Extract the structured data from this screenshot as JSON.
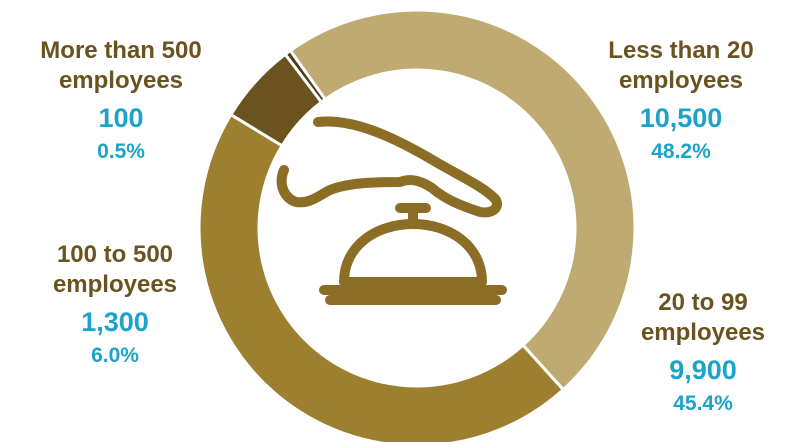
{
  "chart_data": {
    "type": "pie",
    "style": "donut",
    "start_angle_deg": 90,
    "direction": "clockwise",
    "categories": [
      "Less than 20 employees",
      "20 to 99 employees",
      "100 to 500 employees",
      "More than 500 employees"
    ],
    "values": [
      10500,
      9900,
      1300,
      100
    ],
    "value_labels": [
      "10,500",
      "9,900",
      "1,300",
      "100"
    ],
    "percent_labels": [
      "48.2%",
      "45.4%",
      "6.0%",
      "0.5%"
    ],
    "colors": [
      "#bfab72",
      "#9c7f2f",
      "#6b5320",
      "#4d3a14"
    ],
    "center_icon": "service-bell-hand-icon"
  },
  "colors": {
    "label_text": "#6b5320",
    "value_text": "#1ba3c9",
    "icon": "#8c6d26"
  },
  "labels": {
    "less20": {
      "name_line1": "Less than 20",
      "name_line2": "employees",
      "value": "10,500",
      "pct": "48.2%"
    },
    "s20to99": {
      "name_line1": "20 to 99",
      "name_line2": "employees",
      "value": "9,900",
      "pct": "45.4%"
    },
    "s100to500": {
      "name_line1": "100 to 500",
      "name_line2": "employees",
      "value": "1,300",
      "pct": "6.0%"
    },
    "more500": {
      "name_line1": "More than 500",
      "name_line2": "employees",
      "value": "100",
      "pct": "0.5%"
    }
  }
}
